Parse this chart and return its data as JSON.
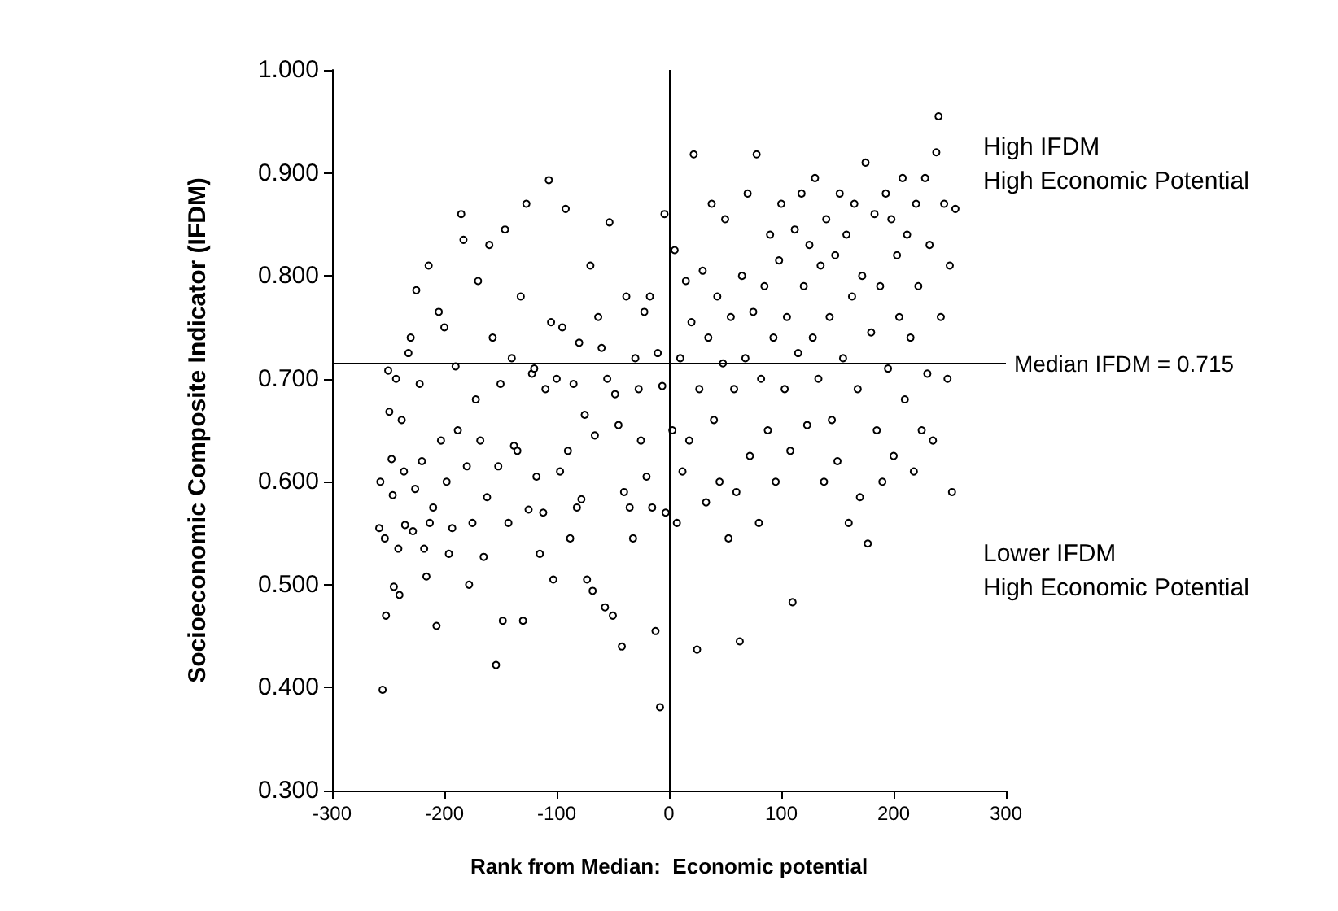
{
  "chart_data": {
    "type": "scatter",
    "xlabel": "Rank from Median:  Economic potential",
    "ylabel": "Socioeconomic Composite Indicator (IFDM)",
    "annotations": [
      "High IFDM\nHigh Economic Potential",
      "Lower IFDM\nHigh Economic Potential"
    ],
    "xlim": [
      -300,
      300
    ],
    "xticks": [
      -300,
      -200,
      -100,
      0,
      100,
      200,
      300
    ],
    "ylim": [
      0.3,
      1.0
    ],
    "yticks": [
      {
        "value": 0.3,
        "label": "0.300"
      },
      {
        "value": 0.4,
        "label": "0.400"
      },
      {
        "value": 0.5,
        "label": "0.500"
      },
      {
        "value": 0.6,
        "label": "0.600"
      },
      {
        "value": 0.7,
        "label": "0.700"
      },
      {
        "value": 0.8,
        "label": "0.800"
      },
      {
        "value": 0.9,
        "label": "0.900"
      },
      {
        "value": 1.0,
        "label": "1.000"
      }
    ],
    "grid": false,
    "marker": "circle",
    "ref_lines": [
      {
        "axis": "y",
        "value": 0.715,
        "label": "Median IFDM = 0.715"
      },
      {
        "axis": "x",
        "value": 0,
        "label": null
      }
    ],
    "series": [
      {
        "color": "#000000",
        "x": [
          -258,
          -257,
          -255,
          -253,
          -252,
          -250,
          -249,
          -247,
          -246,
          -245,
          -243,
          -241,
          -240,
          -238,
          -236,
          -235,
          -232,
          -230,
          -228,
          -226,
          -225,
          -222,
          -220,
          -218,
          -216,
          -214,
          -213,
          -210,
          -207,
          -205,
          -203,
          -200,
          -198,
          -196,
          -193,
          -190,
          -188,
          -185,
          -183,
          -180,
          -178,
          -175,
          -172,
          -170,
          -168,
          -165,
          -162,
          -160,
          -157,
          -154,
          -152,
          -150,
          -148,
          -146,
          -143,
          -140,
          -138,
          -135,
          -132,
          -130,
          -127,
          -125,
          -122,
          -120,
          -118,
          -115,
          -112,
          -110,
          -107,
          -105,
          -103,
          -100,
          -97,
          -95,
          -92,
          -90,
          -88,
          -85,
          -82,
          -80,
          -78,
          -75,
          -73,
          -70,
          -68,
          -66,
          -63,
          -60,
          -57,
          -55,
          -53,
          -50,
          -48,
          -45,
          -42,
          -40,
          -38,
          -35,
          -32,
          -30,
          -27,
          -25,
          -22,
          -20,
          -17,
          -15,
          -12,
          -10,
          -8,
          -6,
          -4,
          -3,
          3,
          5,
          7,
          10,
          12,
          15,
          18,
          20,
          22,
          25,
          27,
          30,
          33,
          35,
          38,
          40,
          43,
          45,
          48,
          50,
          53,
          55,
          58,
          60,
          63,
          65,
          68,
          70,
          72,
          75,
          78,
          80,
          82,
          85,
          88,
          90,
          93,
          95,
          98,
          100,
          103,
          105,
          108,
          110,
          112,
          115,
          118,
          120,
          123,
          125,
          128,
          130,
          133,
          135,
          138,
          140,
          143,
          145,
          148,
          150,
          152,
          155,
          158,
          160,
          163,
          165,
          168,
          170,
          172,
          175,
          177,
          180,
          183,
          185,
          188,
          190,
          193,
          195,
          198,
          200,
          203,
          205,
          208,
          210,
          212,
          215,
          218,
          220,
          222,
          225,
          228,
          230,
          232,
          235,
          238,
          240,
          242,
          245,
          248,
          250,
          252,
          255
        ],
        "values": [
          0.555,
          0.6,
          0.398,
          0.545,
          0.47,
          0.708,
          0.668,
          0.622,
          0.587,
          0.498,
          0.7,
          0.535,
          0.49,
          0.66,
          0.61,
          0.558,
          0.725,
          0.74,
          0.552,
          0.593,
          0.786,
          0.695,
          0.62,
          0.535,
          0.508,
          0.81,
          0.56,
          0.575,
          0.46,
          0.765,
          0.64,
          0.75,
          0.6,
          0.53,
          0.555,
          0.712,
          0.65,
          0.86,
          0.835,
          0.615,
          0.5,
          0.56,
          0.68,
          0.795,
          0.64,
          0.527,
          0.585,
          0.83,
          0.74,
          0.422,
          0.615,
          0.695,
          0.465,
          0.845,
          0.56,
          0.72,
          0.635,
          0.63,
          0.78,
          0.465,
          0.87,
          0.573,
          0.705,
          0.71,
          0.605,
          0.53,
          0.57,
          0.69,
          0.893,
          0.755,
          0.505,
          0.7,
          0.61,
          0.75,
          0.865,
          0.63,
          0.545,
          0.695,
          0.575,
          0.735,
          0.583,
          0.665,
          0.505,
          0.81,
          0.494,
          0.645,
          0.76,
          0.73,
          0.478,
          0.7,
          0.852,
          0.47,
          0.685,
          0.655,
          0.44,
          0.59,
          0.78,
          0.575,
          0.545,
          0.72,
          0.69,
          0.64,
          0.765,
          0.605,
          0.78,
          0.575,
          0.455,
          0.725,
          0.381,
          0.693,
          0.86,
          0.57,
          0.65,
          0.825,
          0.56,
          0.72,
          0.61,
          0.795,
          0.64,
          0.755,
          0.918,
          0.437,
          0.69,
          0.805,
          0.58,
          0.74,
          0.87,
          0.66,
          0.78,
          0.6,
          0.715,
          0.855,
          0.545,
          0.76,
          0.69,
          0.59,
          0.445,
          0.8,
          0.72,
          0.88,
          0.625,
          0.765,
          0.918,
          0.56,
          0.7,
          0.79,
          0.65,
          0.84,
          0.74,
          0.6,
          0.815,
          0.87,
          0.69,
          0.76,
          0.63,
          0.483,
          0.845,
          0.725,
          0.88,
          0.79,
          0.655,
          0.83,
          0.74,
          0.895,
          0.7,
          0.81,
          0.6,
          0.855,
          0.76,
          0.66,
          0.82,
          0.62,
          0.88,
          0.72,
          0.84,
          0.56,
          0.78,
          0.87,
          0.69,
          0.585,
          0.8,
          0.91,
          0.54,
          0.745,
          0.86,
          0.65,
          0.79,
          0.6,
          0.88,
          0.71,
          0.855,
          0.625,
          0.82,
          0.76,
          0.895,
          0.68,
          0.84,
          0.74,
          0.61,
          0.87,
          0.79,
          0.65,
          0.895,
          0.705,
          0.83,
          0.64,
          0.92,
          0.955,
          0.76,
          0.87,
          0.7,
          0.81,
          0.59,
          0.865
        ]
      }
    ]
  }
}
